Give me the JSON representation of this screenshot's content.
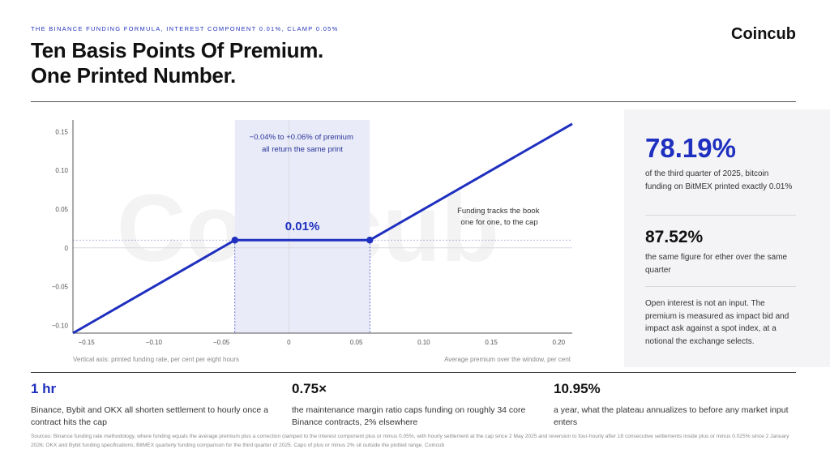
{
  "header": {
    "kicker": "THE BINANCE FUNDING FORMULA, INTEREST COMPONENT 0.01%, CLAMP 0.05%",
    "headline_line1": "Ten Basis Points Of Premium.",
    "headline_line2": "One Printed Number.",
    "brand": "Coincub"
  },
  "chart_data": {
    "type": "line",
    "watermark": "Coincub",
    "x": [
      -0.16,
      -0.04,
      0.06,
      0.21
    ],
    "y": [
      -0.11,
      0.01,
      0.01,
      0.16
    ],
    "xlim": [
      -0.16,
      0.21
    ],
    "ylim": [
      -0.11,
      0.165
    ],
    "xticks": [
      -0.15,
      -0.1,
      -0.05,
      0,
      0.05,
      0.1,
      0.15,
      0.2
    ],
    "xtick_labels": [
      "−0.15",
      "−0.10",
      "−0.05",
      "0",
      "0.05",
      "0.10",
      "0.15",
      "0.20"
    ],
    "yticks": [
      0.15,
      0.1,
      0.05,
      0,
      -0.05,
      -0.1
    ],
    "ytick_labels": [
      "0.15",
      "0.10",
      "0.05",
      "0",
      "−0.05",
      "−0.10"
    ],
    "plateau": {
      "x_from": -0.04,
      "x_to": 0.06,
      "y": 0.01,
      "label": "0.01%"
    },
    "band_annotation": [
      "−0.04% to +0.06% of premium",
      "all return the same print"
    ],
    "slope_annotation": [
      "Funding tracks the book",
      "one for one, to the cap"
    ],
    "ylabel": "Vertical axis: printed funding rate, per cent per eight hours",
    "xlabel": "Average premium over the window, per cent",
    "grid": false,
    "line_color": "#1f2fbf",
    "band_color": "#e9ebf8"
  },
  "sidebar": {
    "stat1_value": "78.19%",
    "stat1_text": "of the third quarter of 2025, bitcoin funding on BitMEX printed exactly 0.01%",
    "stat2_value": "87.52%",
    "stat2_text": "the same figure for ether over the same quarter",
    "note": "Open interest is not an input. The premium is measured as impact bid and impact ask against a spot index, at a notional the exchange selects."
  },
  "bottom_stats": [
    {
      "value": "1 hr",
      "text": "Binance, Bybit and OKX all shorten settlement to hourly once a contract hits the cap"
    },
    {
      "value": "0.75×",
      "text": "the maintenance margin ratio caps funding on roughly 34 core Binance contracts, 2% elsewhere"
    },
    {
      "value": "10.95%",
      "text": "a year, what the plateau annualizes to before any market input enters"
    }
  ],
  "sources": "Sources: Binance funding rate methodology, where funding equals the average premium plus a correction clamped to the interest component plus or minus 0.05%, with hourly settlement at the cap since 2 May 2025 and reversion to four-hourly after 18 consecutive settlements inside plus or minus 0.025% since 2 January 2026; OKX and Bybit funding specifications; BitMEX quarterly funding comparison for the third quarter of 2025. Caps of plus or minus 2% sit outside the plotted range. Coincub"
}
